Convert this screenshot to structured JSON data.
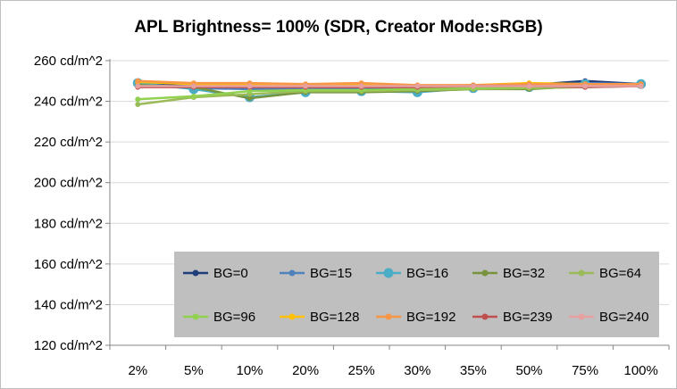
{
  "chart_data": {
    "type": "line",
    "title": "APL Brightness= 100% (SDR, Creator Mode:sRGB)",
    "xlabel": "",
    "ylabel": "",
    "categories": [
      "2%",
      "5%",
      "10%",
      "20%",
      "25%",
      "30%",
      "35%",
      "50%",
      "75%",
      "100%"
    ],
    "ylim": [
      120,
      260
    ],
    "y_tick_values": [
      120,
      140,
      160,
      180,
      200,
      220,
      240,
      260
    ],
    "y_tick_labels": [
      "120 cd/m^2",
      "140 cd/m^2",
      "160 cd/m^2",
      "180 cd/m^2",
      "200 cd/m^2",
      "220 cd/m^2",
      "240 cd/m^2",
      "260 cd/m^2"
    ],
    "grid": true,
    "legend_position": "bottom-right",
    "series": [
      {
        "name": "BG=0",
        "color": "#1f3d7a",
        "marker": "small",
        "values": [
          248.5,
          247.5,
          247.0,
          246.5,
          246.5,
          247.0,
          247.5,
          248.0,
          250.0,
          248.5
        ]
      },
      {
        "name": "BG=15",
        "color": "#4f81bd",
        "marker": "small",
        "values": [
          248.0,
          246.5,
          246.0,
          246.0,
          246.0,
          246.5,
          247.0,
          247.5,
          249.0,
          248.5
        ]
      },
      {
        "name": "BG=16",
        "color": "#4bacc6",
        "marker": "large",
        "values": [
          249.0,
          246.0,
          242.0,
          244.5,
          245.0,
          244.5,
          246.5,
          247.0,
          248.5,
          248.5
        ]
      },
      {
        "name": "BG=32",
        "color": "#77933c",
        "marker": "small",
        "values": [
          248.0,
          247.0,
          241.5,
          244.5,
          244.5,
          245.0,
          246.0,
          246.0,
          247.5,
          248.0
        ]
      },
      {
        "name": "BG=64",
        "color": "#9bbb59",
        "marker": "small",
        "values": [
          238.5,
          242.0,
          243.5,
          245.0,
          245.0,
          245.5,
          246.0,
          246.5,
          247.0,
          247.5
        ]
      },
      {
        "name": "BG=96",
        "color": "#92d050",
        "marker": "small",
        "values": [
          241.0,
          242.5,
          245.0,
          245.5,
          245.5,
          246.0,
          246.5,
          247.0,
          247.5,
          248.0
        ]
      },
      {
        "name": "BG=128",
        "color": "#ffc000",
        "marker": "small",
        "values": [
          249.5,
          248.5,
          248.0,
          247.5,
          248.0,
          247.5,
          248.0,
          249.0,
          248.5,
          248.5
        ]
      },
      {
        "name": "BG=192",
        "color": "#f79646",
        "marker": "small",
        "values": [
          250.0,
          249.0,
          249.0,
          248.5,
          249.0,
          248.0,
          248.0,
          248.5,
          248.5,
          248.5
        ]
      },
      {
        "name": "BG=239",
        "color": "#c0504d",
        "marker": "small",
        "values": [
          247.0,
          247.0,
          247.0,
          247.0,
          247.0,
          247.0,
          247.5,
          247.5,
          247.0,
          247.5
        ]
      },
      {
        "name": "BG=240",
        "color": "#e6a0a0",
        "marker": "small",
        "values": [
          247.5,
          247.5,
          247.5,
          247.5,
          247.5,
          247.5,
          247.5,
          247.5,
          247.5,
          247.5
        ]
      }
    ]
  }
}
